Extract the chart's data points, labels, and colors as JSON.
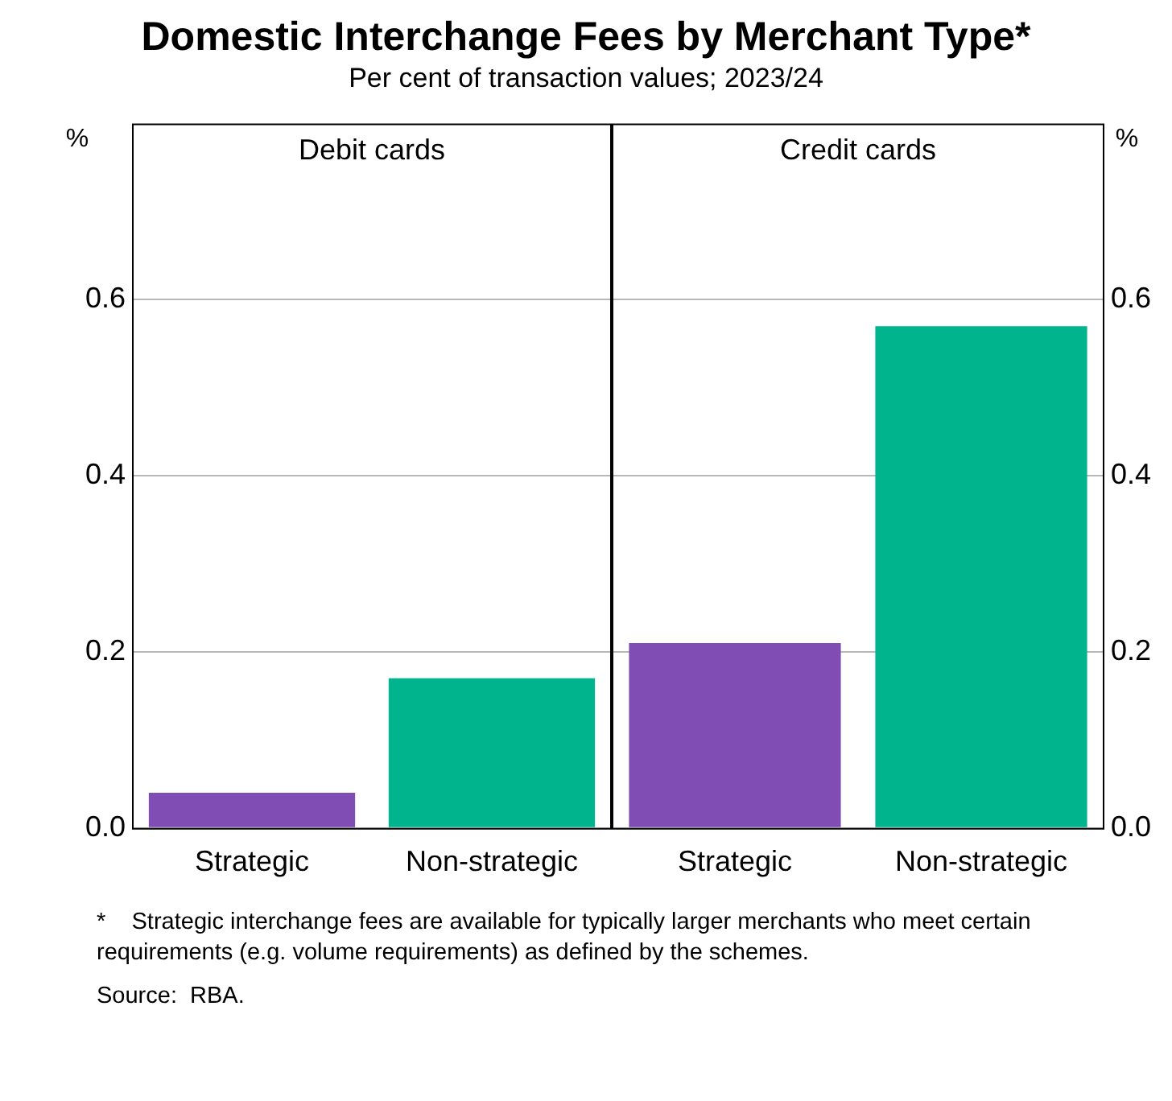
{
  "chart_data": [
    {
      "type": "other",
      "title": "Domestic Interchange Fees by Merchant Type*",
      "subtitle": "Per cent of transaction values; 2023/24"
    },
    {
      "type": "bar",
      "title": "Debit cards",
      "ylabel": "%",
      "categories": [
        "Strategic",
        "Non-strategic"
      ],
      "values": [
        0.04,
        0.17
      ],
      "colors": [
        "#7f4db3",
        "#00b48d"
      ],
      "ylim": [
        0,
        0.8
      ],
      "yticks": [
        {
          "value": 0,
          "label": "0.0"
        },
        0.2,
        0.4,
        0.6
      ],
      "grid": "y"
    },
    {
      "type": "bar",
      "title": "Credit cards",
      "y2label": "%",
      "categories": [
        "Strategic",
        "Non-strategic"
      ],
      "series": [
        {
          "axis": "y2",
          "values": [
            0.21,
            0.57
          ],
          "colors": [
            "#7f4db3",
            "#00b48d"
          ]
        }
      ],
      "y2lim": [
        0,
        0.8
      ],
      "y2ticks": [
        {
          "value": 0,
          "label": "0.0"
        },
        0.2,
        0.4,
        0.6
      ],
      "grid": "y"
    },
    {
      "type": "other",
      "annotations": [
        "*    Strategic interchange fees are available for typically larger merchants who meet certain requirements (e.g. volume requirements) as defined by the schemes.",
        "Source:  RBA."
      ]
    }
  ]
}
